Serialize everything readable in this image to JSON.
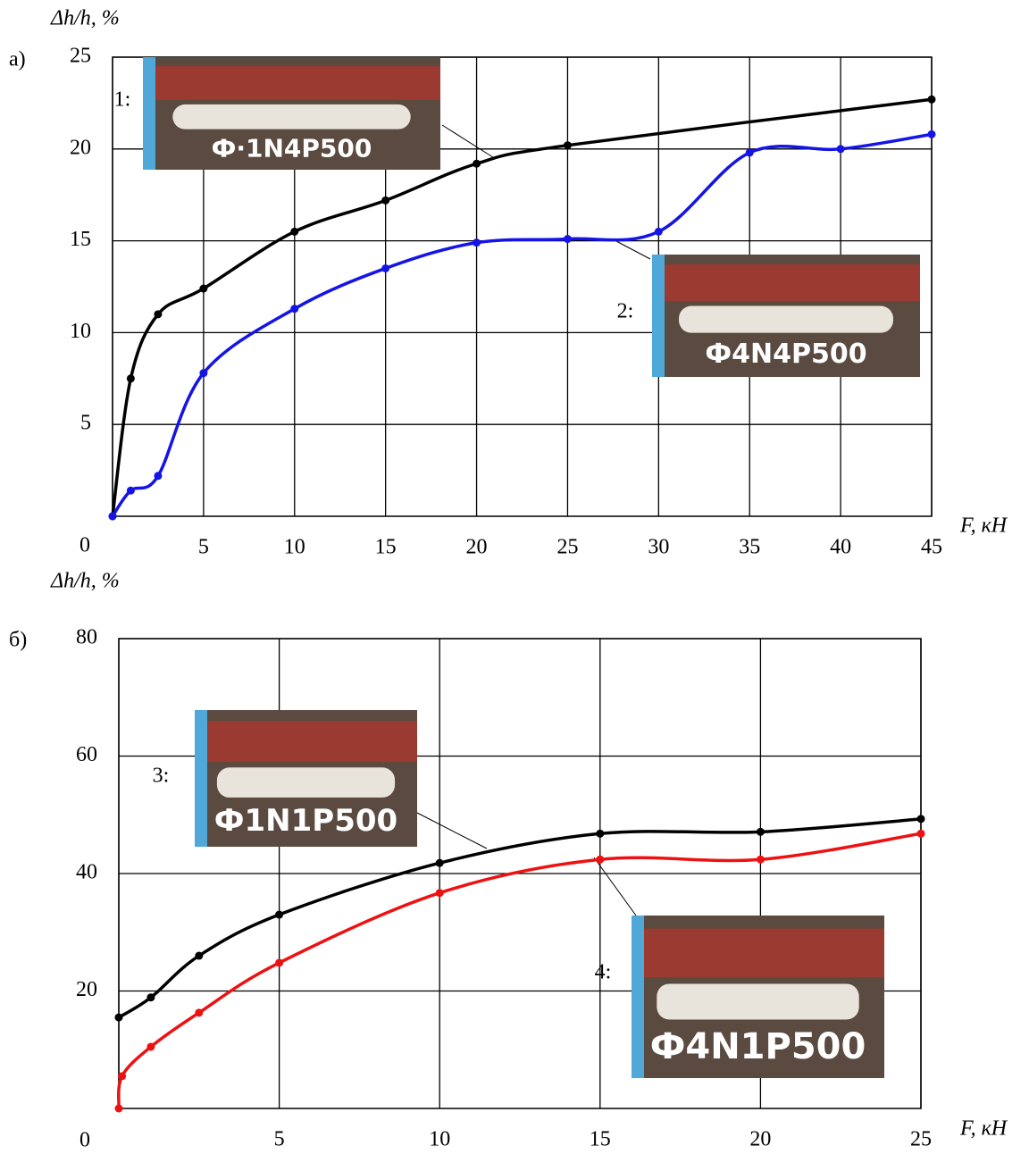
{
  "chart_data": [
    {
      "type": "line",
      "panel": "а)",
      "x_label": "F, кН",
      "y_label": "Δh/h, %",
      "xlim": [
        0,
        45
      ],
      "ylim": [
        0,
        25
      ],
      "xticks": [
        0,
        5,
        10,
        15,
        20,
        25,
        30,
        35,
        40,
        45
      ],
      "yticks": [
        5,
        10,
        15,
        20,
        25
      ],
      "grid": true,
      "insets": [
        {
          "label": "1:",
          "caption": "Ф·1N4P500"
        },
        {
          "label": "2:",
          "caption": "Ф4N4P500"
        }
      ],
      "series": [
        {
          "color": "#000000",
          "x": [
            0,
            1,
            2.5,
            5,
            10,
            15,
            20,
            25,
            45
          ],
          "values": [
            0,
            7.5,
            11,
            12.4,
            15.5,
            17.2,
            19.2,
            20.2,
            22.7
          ]
        },
        {
          "color": "#1414e6",
          "x": [
            0,
            1,
            2.5,
            5,
            10,
            15,
            20,
            25,
            30,
            35,
            40,
            45
          ],
          "values": [
            0,
            1.4,
            2.2,
            7.8,
            11.3,
            13.5,
            14.9,
            15.1,
            15.5,
            19.8,
            20,
            20.8
          ]
        }
      ]
    },
    {
      "type": "line",
      "panel": "б)",
      "x_label": "F, кН",
      "y_label": "Δh/h, %",
      "xlim": [
        0,
        25
      ],
      "ylim": [
        0,
        80
      ],
      "xticks": [
        0,
        5,
        10,
        15,
        20,
        25
      ],
      "yticks": [
        20,
        40,
        60,
        80
      ],
      "grid": true,
      "insets": [
        {
          "label": "3:",
          "caption": "Ф1N1P500"
        },
        {
          "label": "4:",
          "caption": "Ф4N1P500"
        }
      ],
      "series": [
        {
          "color": "#000000",
          "x": [
            0,
            1,
            2.5,
            5,
            10,
            15,
            20,
            25
          ],
          "values": [
            15.5,
            18.9,
            26,
            33,
            41.8,
            46.8,
            47.1,
            49.3
          ]
        },
        {
          "color": "#ee1111",
          "x": [
            0,
            0.1,
            1,
            2.5,
            5,
            10,
            15,
            20,
            25
          ],
          "values": [
            0,
            5.5,
            10.5,
            16.3,
            24.8,
            36.7,
            42.4,
            42.4,
            46.8
          ]
        }
      ]
    }
  ]
}
